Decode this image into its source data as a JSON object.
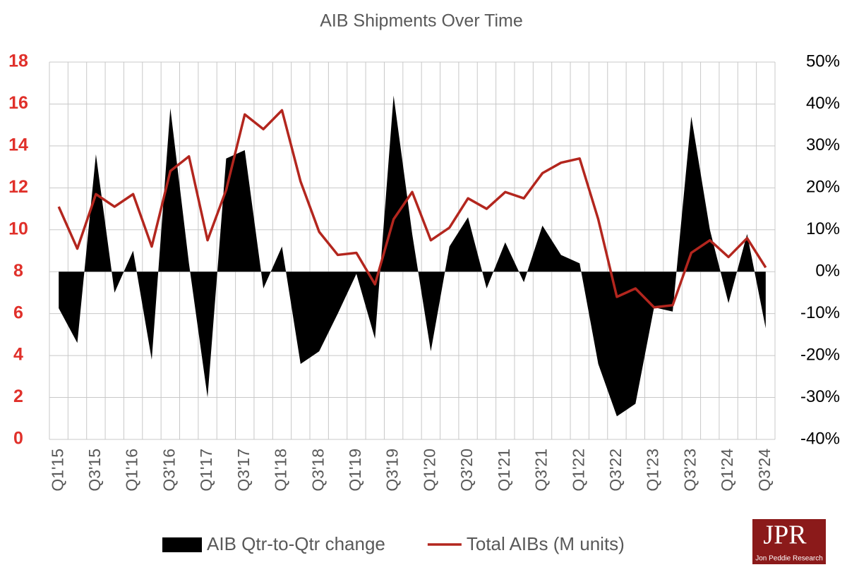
{
  "chart_data": {
    "type": "line",
    "title": "AIB Shipments Over Time",
    "categories": [
      "Q1'15",
      null,
      "Q3'15",
      null,
      "Q1'16",
      null,
      "Q3'16",
      null,
      "Q1'17",
      null,
      "Q3'17",
      null,
      "Q1'18",
      null,
      "Q3'18",
      null,
      "Q1'19",
      null,
      "Q3'19",
      null,
      "Q1'20",
      null,
      "Q3'20",
      null,
      "Q1'21",
      null,
      "Q3'21",
      null,
      "Q1'22",
      null,
      "Q3'22",
      null,
      "Q1'23",
      null,
      "Q3'23",
      null,
      "Q1'24",
      null,
      "Q3'24"
    ],
    "series": [
      {
        "name": "AIB Qtr-to-Qtr change",
        "type": "area",
        "axis": "y2",
        "color": "#000000",
        "values": [
          -8.7,
          -17,
          28,
          -5,
          5,
          -21,
          39,
          2,
          -30,
          27,
          29,
          -4,
          6,
          -22,
          -19,
          -10,
          -0.5,
          -16,
          42,
          9,
          -19,
          6,
          13,
          -4,
          7,
          -2.5,
          11,
          4,
          2,
          -22,
          -34.5,
          -31.5,
          -8.5,
          -9.5,
          37,
          10,
          -7.5,
          9,
          -13.5
        ]
      },
      {
        "name": "Total AIBs (M units)",
        "type": "line",
        "color": "#b3261e",
        "values": [
          11.1,
          9.1,
          11.7,
          11.1,
          11.7,
          9.2,
          12.8,
          13.5,
          9.5,
          11.9,
          15.5,
          14.8,
          15.7,
          12.3,
          9.9,
          8.8,
          8.9,
          7.4,
          10.5,
          11.8,
          9.5,
          10.1,
          11.5,
          11.0,
          11.8,
          11.5,
          12.7,
          13.2,
          13.4,
          10.5,
          6.8,
          7.2,
          6.3,
          6.4,
          8.9,
          9.5,
          8.7,
          9.6,
          8.2
        ]
      }
    ],
    "ylim": [
      0,
      18
    ],
    "yticks": [
      0,
      2,
      4,
      6,
      8,
      10,
      12,
      14,
      16,
      18
    ],
    "y2lim": [
      -40,
      50
    ],
    "y2ticks": [
      {
        "value": -40,
        "label": "-40%"
      },
      {
        "value": -30,
        "label": "-30%"
      },
      {
        "value": -20,
        "label": "-20%"
      },
      {
        "value": -10,
        "label": "-10%"
      },
      {
        "value": 0,
        "label": "0%"
      },
      {
        "value": 10,
        "label": "10%"
      },
      {
        "value": 20,
        "label": "20%"
      },
      {
        "value": 30,
        "label": "30%"
      },
      {
        "value": 40,
        "label": "40%"
      },
      {
        "value": 50,
        "label": "50%"
      }
    ],
    "grid": true,
    "legend": "bottom"
  },
  "logo": {
    "text": "JPR",
    "subtitle": "Jon Peddie Research"
  }
}
